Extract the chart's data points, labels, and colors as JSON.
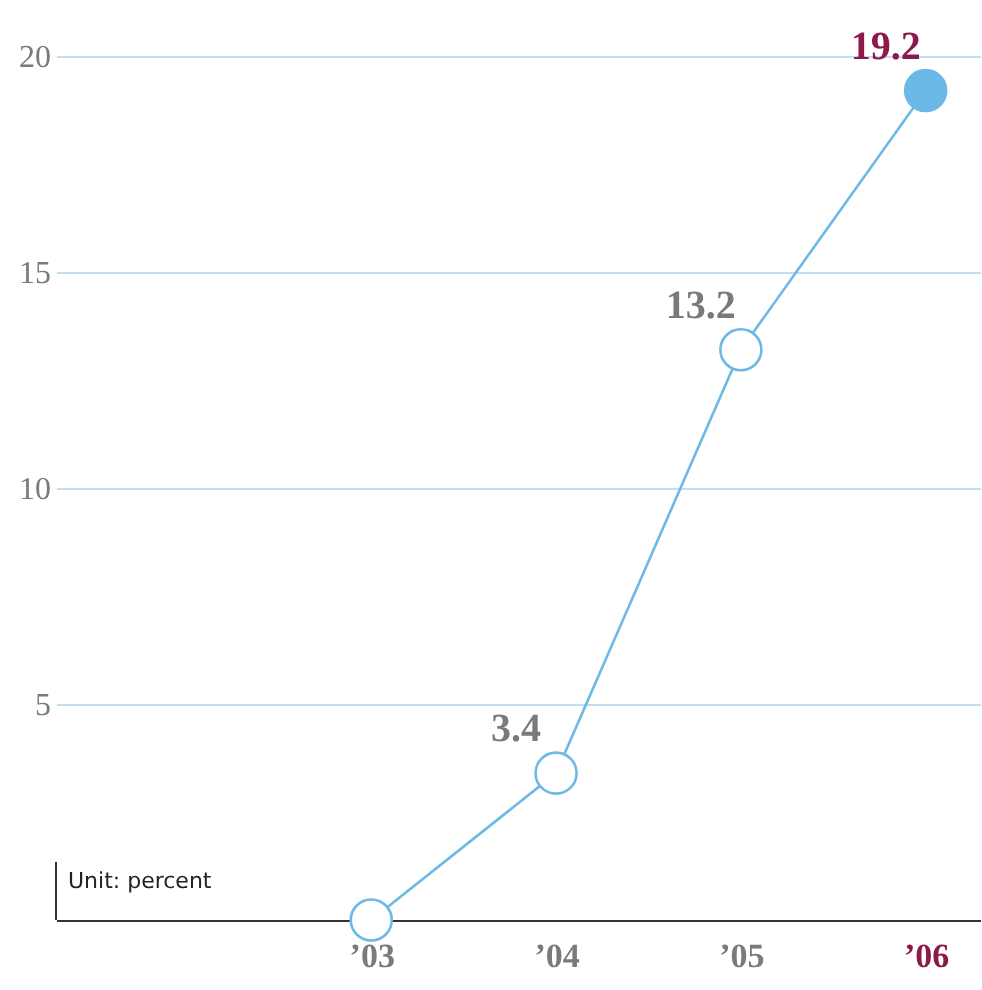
{
  "chart_data": {
    "type": "line",
    "categories": [
      "’03",
      "’04",
      "’05",
      "’06"
    ],
    "series": [
      {
        "color": "#6cb8e6",
        "values": [
          0,
          3.4,
          13.2,
          19.2
        ],
        "value_labels": [
          null,
          "3.4",
          "13.2",
          "19.2"
        ],
        "colors": [
          "#ffffff",
          "#ffffff",
          "#ffffff",
          "#6cb8e6"
        ]
      }
    ],
    "ylim": [
      0,
      20
    ],
    "yticks": [
      5,
      10,
      15,
      20
    ],
    "grid": "y",
    "marker": "circle",
    "line_style": "solid",
    "annotations": [
      "Unit: percent"
    ]
  }
}
